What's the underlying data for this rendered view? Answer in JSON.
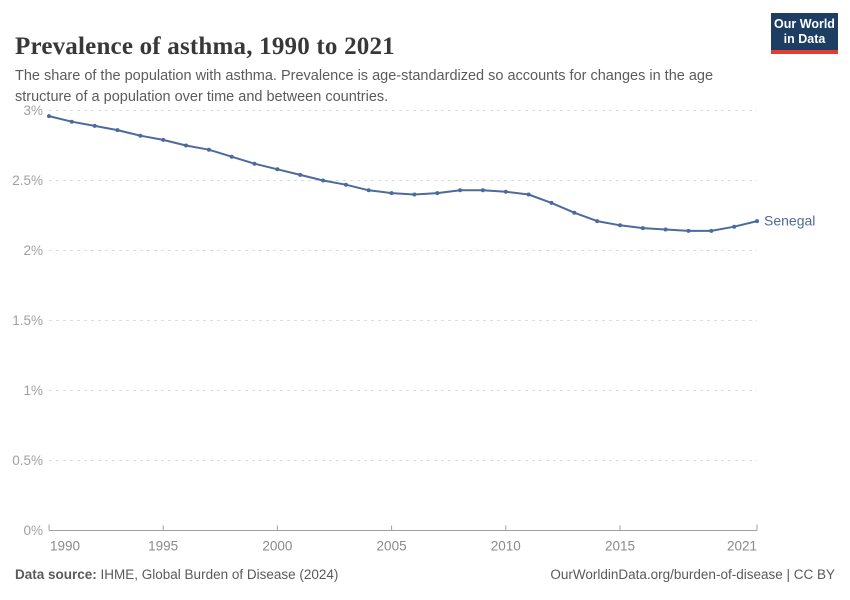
{
  "header": {
    "title": "Prevalence of asthma, 1990 to 2021",
    "subtitle_lines": [
      "The share of the population with asthma. Prevalence is age-standardized so accounts for changes in the age",
      "structure of a population over time and between countries."
    ],
    "logo": {
      "line1": "Our World",
      "line2": "in Data",
      "bg_color": "#1d3d63",
      "accent_color": "#e23d33"
    }
  },
  "chart_data": {
    "type": "line",
    "title": "Prevalence of asthma, 1990 to 2021",
    "unit": "%",
    "x": [
      1990,
      1991,
      1992,
      1993,
      1994,
      1995,
      1996,
      1997,
      1998,
      1999,
      2000,
      2001,
      2002,
      2003,
      2004,
      2005,
      2006,
      2007,
      2008,
      2009,
      2010,
      2011,
      2012,
      2013,
      2014,
      2015,
      2016,
      2017,
      2018,
      2019,
      2020,
      2021
    ],
    "series": [
      {
        "name": "Senegal",
        "color": "#4c6a9c",
        "values": [
          2.96,
          2.92,
          2.89,
          2.86,
          2.82,
          2.79,
          2.75,
          2.72,
          2.67,
          2.62,
          2.58,
          2.54,
          2.5,
          2.47,
          2.43,
          2.41,
          2.4,
          2.41,
          2.43,
          2.43,
          2.42,
          2.4,
          2.34,
          2.27,
          2.21,
          2.18,
          2.16,
          2.15,
          2.14,
          2.14,
          2.17,
          2.21
        ]
      }
    ],
    "xlim": [
      1990,
      2021
    ],
    "ylim": [
      0,
      3
    ],
    "x_ticks": [
      1990,
      1995,
      2000,
      2005,
      2010,
      2015,
      2021
    ],
    "y_ticks": [
      {
        "value": 0,
        "label": "0%"
      },
      {
        "value": 0.5,
        "label": "0.5%"
      },
      {
        "value": 1,
        "label": "1%"
      },
      {
        "value": 1.5,
        "label": "1.5%"
      },
      {
        "value": 2,
        "label": "2%"
      },
      {
        "value": 2.5,
        "label": "2.5%"
      },
      {
        "value": 3,
        "label": "3%"
      }
    ],
    "grid": "horizontal-dashed",
    "legend_position": "end-of-line-label",
    "colors": {
      "line": "#4c6a9c",
      "gridline": "#dcdcdc",
      "axis": "#a1a1a1",
      "y_tick_text": "#a0a0a0",
      "x_tick_text": "#8a8a8a"
    }
  },
  "footer": {
    "source_label": "Data source:",
    "source_text": " IHME, Global Burden of Disease (2024)",
    "right_text": "OurWorldinData.org/burden-of-disease | CC BY"
  }
}
